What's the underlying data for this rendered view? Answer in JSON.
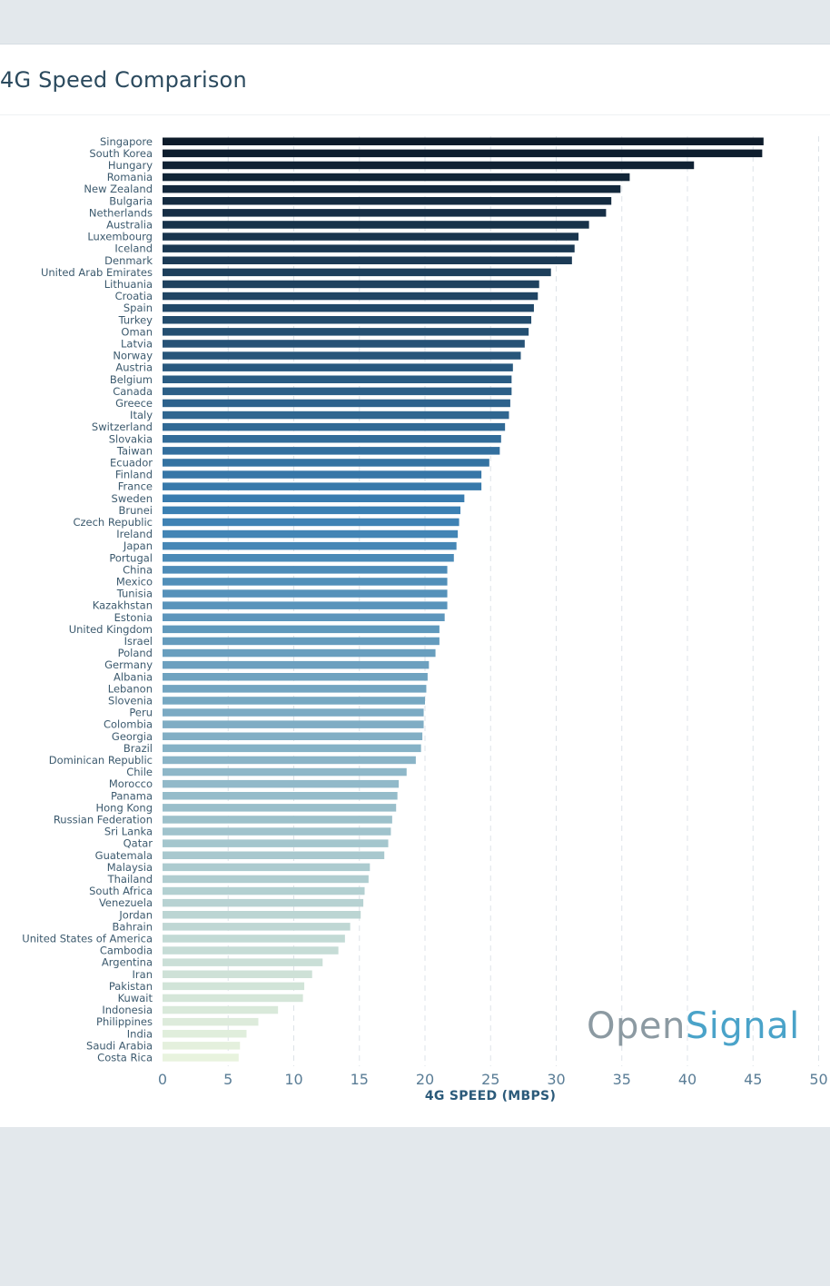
{
  "page": {
    "title": "4G Speed Comparison",
    "logo_part1": "Open",
    "logo_part2": "Signal"
  },
  "chart_data": {
    "type": "bar",
    "orientation": "horizontal",
    "title": "4G Speed Comparison",
    "xlabel": "4G SPEED (MBPS)",
    "ylabel": "",
    "xlim": [
      0,
      50
    ],
    "xticks": [
      0,
      5,
      10,
      15,
      20,
      25,
      30,
      35,
      40,
      45,
      50
    ],
    "grid": "vertical dashed",
    "colors": {
      "high": "#0d1b2a",
      "mid": "#3a7fb3",
      "low": "#e8f3de"
    },
    "categories": [
      "Singapore",
      "South Korea",
      "Hungary",
      "Romania",
      "New Zealand",
      "Bulgaria",
      "Netherlands",
      "Australia",
      "Luxembourg",
      "Iceland",
      "Denmark",
      "United Arab Emirates",
      "Lithuania",
      "Croatia",
      "Spain",
      "Turkey",
      "Oman",
      "Latvia",
      "Norway",
      "Austria",
      "Belgium",
      "Canada",
      "Greece",
      "Italy",
      "Switzerland",
      "Slovakia",
      "Taiwan",
      "Ecuador",
      "Finland",
      "France",
      "Sweden",
      "Brunei",
      "Czech Republic",
      "Ireland",
      "Japan",
      "Portugal",
      "China",
      "Mexico",
      "Tunisia",
      "Kazakhstan",
      "Estonia",
      "United Kingdom",
      "Israel",
      "Poland",
      "Germany",
      "Albania",
      "Lebanon",
      "Slovenia",
      "Peru",
      "Colombia",
      "Georgia",
      "Brazil",
      "Dominican Republic",
      "Chile",
      "Morocco",
      "Panama",
      "Hong Kong",
      "Russian Federation",
      "Sri Lanka",
      "Qatar",
      "Guatemala",
      "Malaysia",
      "Thailand",
      "South Africa",
      "Venezuela",
      "Jordan",
      "Bahrain",
      "United States of America",
      "Cambodia",
      "Argentina",
      "Iran",
      "Pakistan",
      "Kuwait",
      "Indonesia",
      "Philippines",
      "India",
      "Saudi Arabia",
      "Costa Rica"
    ],
    "values": [
      45.8,
      45.7,
      40.5,
      35.6,
      34.9,
      34.2,
      33.8,
      32.5,
      31.7,
      31.4,
      31.2,
      29.6,
      28.7,
      28.6,
      28.3,
      28.1,
      27.9,
      27.6,
      27.3,
      26.7,
      26.6,
      26.6,
      26.5,
      26.4,
      26.1,
      25.8,
      25.7,
      24.9,
      24.3,
      24.3,
      23.0,
      22.7,
      22.6,
      22.5,
      22.4,
      22.2,
      21.7,
      21.7,
      21.7,
      21.7,
      21.5,
      21.1,
      21.1,
      20.8,
      20.3,
      20.2,
      20.1,
      20.0,
      19.9,
      19.9,
      19.8,
      19.7,
      19.3,
      18.6,
      18.0,
      17.9,
      17.8,
      17.5,
      17.4,
      17.2,
      16.9,
      15.8,
      15.7,
      15.4,
      15.3,
      15.1,
      14.3,
      13.9,
      13.4,
      12.2,
      11.4,
      10.8,
      10.7,
      8.8,
      7.3,
      6.4,
      5.9,
      5.8
    ]
  }
}
